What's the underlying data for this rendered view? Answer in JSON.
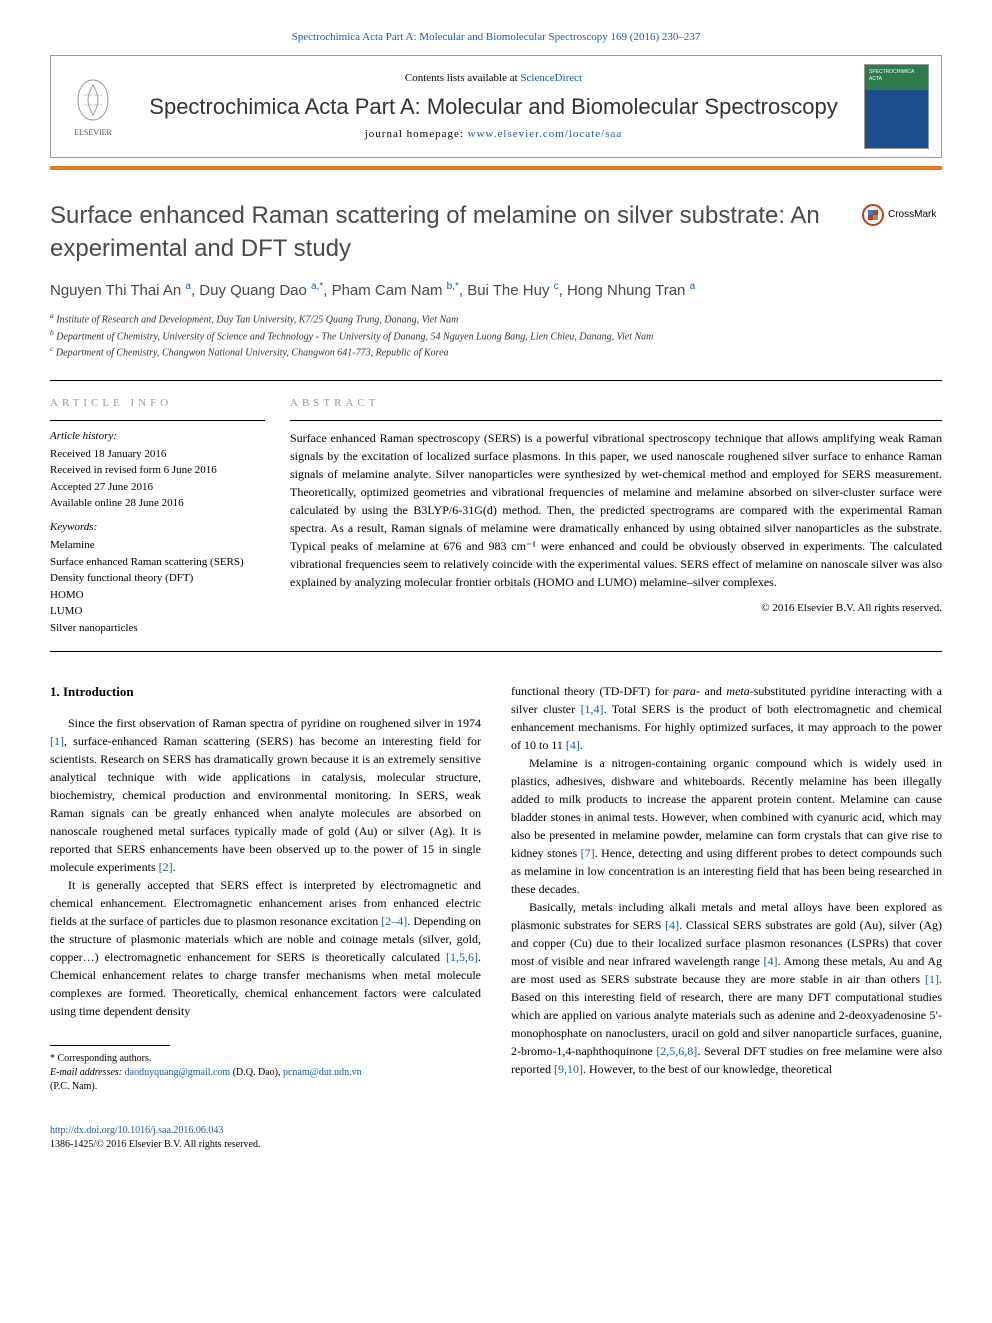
{
  "citation": "Spectrochimica Acta Part A: Molecular and Biomolecular Spectroscopy 169 (2016) 230–237",
  "header": {
    "contents_prefix": "Contents lists available at ",
    "contents_link": "ScienceDirect",
    "journal_name": "Spectrochimica Acta Part A: Molecular and Biomolecular Spectroscopy",
    "homepage_label": "journal homepage: ",
    "homepage_url": "www.elsevier.com/locate/saa",
    "publisher": "ELSEVIER",
    "cover_label": "SPECTROCHIMICA ACTA"
  },
  "article": {
    "title": "Surface enhanced Raman scattering of melamine on silver substrate: An experimental and DFT study",
    "crossmark": "CrossMark",
    "authors_html": "Nguyen Thi Thai An <sup>a</sup>, Duy Quang Dao <sup>a,*</sup>, Pham Cam Nam <sup>b,*</sup>, Bui The Huy <sup>c</sup>, Hong Nhung Tran <sup>a</sup>",
    "affiliations": {
      "a": "Institute of Research and Development, Duy Tan University, K7/25 Quang Trung, Danang, Viet Nam",
      "b": "Department of Chemistry, University of Science and Technology - The University of Danang, 54 Nguyen Luong Bang, Lien Chieu, Danang, Viet Nam",
      "c": "Department of Chemistry, Changwon National University, Changwon 641-773, Republic of Korea"
    }
  },
  "info": {
    "header": "article info",
    "history_label": "Article history:",
    "history": [
      "Received 18 January 2016",
      "Received in revised form 6 June 2016",
      "Accepted 27 June 2016",
      "Available online 28 June 2016"
    ],
    "keywords_label": "Keywords:",
    "keywords": [
      "Melamine",
      "Surface enhanced Raman scattering (SERS)",
      "Density functional theory (DFT)",
      "HOMO",
      "LUMO",
      "Silver nanoparticles"
    ]
  },
  "abstract": {
    "header": "abstract",
    "text": "Surface enhanced Raman spectroscopy (SERS) is a powerful vibrational spectroscopy technique that allows amplifying weak Raman signals by the excitation of localized surface plasmons. In this paper, we used nanoscale roughened silver surface to enhance Raman signals of melamine analyte. Silver nanoparticles were synthesized by wet-chemical method and employed for SERS measurement. Theoretically, optimized geometries and vibrational frequencies of melamine and melamine absorbed on silver-cluster surface were calculated by using the B3LYP/6-31G(d) method. Then, the predicted spectrograms are compared with the experimental Raman spectra. As a result, Raman signals of melamine were dramatically enhanced by using obtained silver nanoparticles as the substrate. Typical peaks of melamine at 676 and 983 cm⁻¹ were enhanced and could be obviously observed in experiments. The calculated vibrational frequencies seem to relatively coincide with the experimental values. SERS effect of melamine on nanoscale silver was also explained by analyzing molecular frontier orbitals (HOMO and LUMO) melamine–silver complexes.",
    "copyright": "© 2016 Elsevier B.V. All rights reserved."
  },
  "body": {
    "intro_heading": "1. Introduction",
    "left_paragraphs": [
      "Since the first observation of Raman spectra of pyridine on roughened silver in 1974 <span class=\"ref-link\">[1]</span>, surface-enhanced Raman scattering (SERS) has become an interesting field for scientists. Research on SERS has dramatically grown because it is an extremely sensitive analytical technique with wide applications in catalysis, molecular structure, biochemistry, chemical production and environmental monitoring. In SERS, weak Raman signals can be greatly enhanced when analyte molecules are absorbed on nanoscale roughened metal surfaces typically made of gold (Au) or silver (Ag). It is reported that SERS enhancements have been observed up to the power of 15 in single molecule experiments <span class=\"ref-link\">[2]</span>.",
      "It is generally accepted that SERS effect is interpreted by electromagnetic and chemical enhancement. Electromagnetic enhancement arises from enhanced electric fields at the surface of particles due to plasmon resonance excitation <span class=\"ref-link\">[2–4]</span>. Depending on the structure of plasmonic materials which are noble and coinage metals (silver, gold, copper…) electromagnetic enhancement for SERS is theoretically calculated <span class=\"ref-link\">[1,5,6]</span>. Chemical enhancement relates to charge transfer mechanisms when metal molecule complexes are formed. Theoretically, chemical enhancement factors were calculated using time dependent density"
    ],
    "right_paragraphs": [
      "functional theory (TD-DFT) for <i>para</i>- and <i>meta</i>-substituted pyridine interacting with a silver cluster <span class=\"ref-link\">[1,4]</span>. Total SERS is the product of both electromagnetic and chemical enhancement mechanisms. For highly optimized surfaces, it may approach to the power of 10 to 11 <span class=\"ref-link\">[4]</span>.",
      "Melamine is a nitrogen-containing organic compound which is widely used in plastics, adhesives, dishware and whiteboards. Recently melamine has been illegally added to milk products to increase the apparent protein content. Melamine can cause bladder stones in animal tests. However, when combined with cyanuric acid, which may also be presented in melamine powder, melamine can form crystals that can give rise to kidney stones <span class=\"ref-link\">[7]</span>. Hence, detecting and using different probes to detect compounds such as melamine in low concentration is an interesting field that has been being researched in these decades.",
      "Basically, metals including alkali metals and metal alloys have been explored as plasmonic substrates for SERS <span class=\"ref-link\">[4]</span>. Classical SERS substrates are gold (Au), silver (Ag) and copper (Cu) due to their localized surface plasmon resonances (LSPRs) that cover most of visible and near infrared wavelength range <span class=\"ref-link\">[4]</span>. Among these metals, Au and Ag are most used as SERS substrate because they are more stable in air than others <span class=\"ref-link\">[1]</span>. Based on this interesting field of research, there are many DFT computational studies which are applied on various analyte materials such as adenine and 2-deoxyadenosine 5′-monophosphate on nanoclusters, uracil on gold and silver nanoparticle surfaces, guanine, 2-bromo-1,4-naphthoquinone <span class=\"ref-link\">[2,5,6,8]</span>. Several DFT studies on free melamine were also reported <span class=\"ref-link\">[9,10]</span>. However, to the best of our knowledge, theoretical"
    ]
  },
  "footnote": {
    "corr": "* Corresponding authors.",
    "email_label": "E-mail addresses: ",
    "email1": "daoduyquang@gmail.com",
    "email1_who": " (D.Q. Dao), ",
    "email2": "pcnam@dut.udn.vn",
    "email2_who": "(P.C. Nam)."
  },
  "bottom": {
    "doi": "http://dx.doi.org/10.1016/j.saa.2016.06.043",
    "issn": "1386-1425/© 2016 Elsevier B.V. All rights reserved."
  },
  "colors": {
    "accent_orange": "#e67817",
    "link_blue": "#1a5b9e",
    "cover_green": "#2d7a4d",
    "cover_blue": "#1a4d8c",
    "crossmark_red": "#c23b22"
  },
  "typography": {
    "body_font": "Georgia, Times New Roman, serif",
    "sans_font": "Verdana, Arial, sans-serif",
    "title_size_pt": 18,
    "journal_name_size_pt": 17,
    "body_size_pt": 9
  }
}
